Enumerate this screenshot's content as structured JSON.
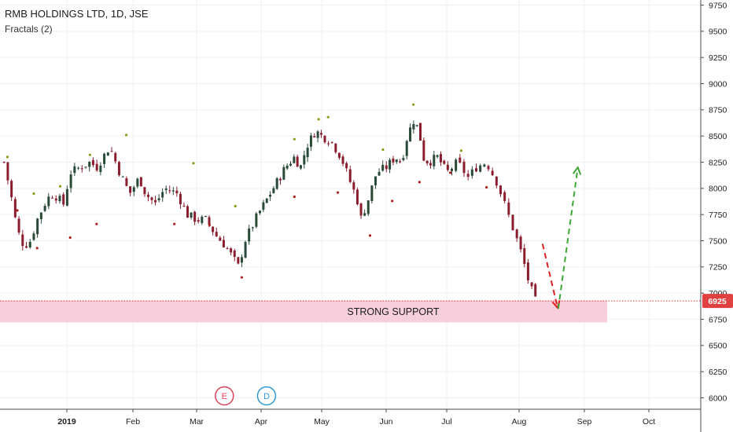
{
  "legend": {
    "title": "RMB HOLDINGS LTD, 1D, JSE",
    "indicator": "Fractals (2)"
  },
  "price_label": "6925",
  "support_label": "STRONG SUPPORT",
  "events": [
    {
      "label": "E",
      "color": "#e0405a",
      "x_month": 2.43
    },
    {
      "label": "D",
      "color": "#2d9ad6",
      "x_month": 3.09
    }
  ],
  "colors": {
    "candle_up": "#2a4a38",
    "candle_down": "#8a1e2e",
    "support_zone": "#f7cfdc",
    "price_line": "#e03030",
    "price_tag": "#e04040",
    "down_arrow": "#e02020",
    "up_arrow": "#3aa833",
    "fractal_up": "#8a9a1a",
    "fractal_down": "#b01e1e"
  },
  "chart_data": {
    "type": "candlestick",
    "title": "RMB HOLDINGS LTD, 1D, JSE",
    "interval": "1D",
    "ylim": [
      5880,
      9800
    ],
    "y_ticks": [
      "9750",
      "9500",
      "9250",
      "9000",
      "8750",
      "8500",
      "8250",
      "8000",
      "7750",
      "7500",
      "7250",
      "7000",
      "6750",
      "6500",
      "6250",
      "6000"
    ],
    "x_ticks": [
      "2019",
      "Feb",
      "Mar",
      "Apr",
      "May",
      "Jun",
      "Jul",
      "Aug",
      "Sep",
      "Oct"
    ],
    "last_price": 6925,
    "support_zone": {
      "low": 6720,
      "high": 6930,
      "label": "STRONG SUPPORT"
    },
    "close_path": [
      [
        -0.95,
        8250
      ],
      [
        -0.85,
        7950
      ],
      [
        -0.75,
        7600
      ],
      [
        -0.65,
        7450
      ],
      [
        -0.55,
        7500
      ],
      [
        -0.45,
        7700
      ],
      [
        -0.3,
        7900
      ],
      [
        -0.2,
        7950
      ],
      [
        -0.05,
        7850
      ],
      [
        0.05,
        8150
      ],
      [
        0.2,
        8200
      ],
      [
        0.35,
        8250
      ],
      [
        0.45,
        8200
      ],
      [
        0.55,
        8300
      ],
      [
        0.65,
        8400
      ],
      [
        0.8,
        8150
      ],
      [
        0.95,
        7950
      ],
      [
        1.1,
        8100
      ],
      [
        1.2,
        7950
      ],
      [
        1.35,
        7850
      ],
      [
        1.5,
        8000
      ],
      [
        1.7,
        7950
      ],
      [
        1.85,
        7750
      ],
      [
        2.0,
        7700
      ],
      [
        2.15,
        7700
      ],
      [
        2.3,
        7550
      ],
      [
        2.45,
        7450
      ],
      [
        2.55,
        7350
      ],
      [
        2.65,
        7250
      ],
      [
        2.75,
        7500
      ],
      [
        2.95,
        7750
      ],
      [
        3.2,
        8000
      ],
      [
        3.4,
        8200
      ],
      [
        3.55,
        8300
      ],
      [
        3.65,
        8200
      ],
      [
        3.75,
        8400
      ],
      [
        3.9,
        8550
      ],
      [
        4.0,
        8500
      ],
      [
        4.15,
        8450
      ],
      [
        4.3,
        8300
      ],
      [
        4.45,
        8050
      ],
      [
        4.55,
        7900
      ],
      [
        4.6,
        7700
      ],
      [
        4.7,
        7850
      ],
      [
        4.85,
        8150
      ],
      [
        5.0,
        8200
      ],
      [
        5.15,
        8300
      ],
      [
        5.25,
        8250
      ],
      [
        5.35,
        8500
      ],
      [
        5.45,
        8650
      ],
      [
        5.55,
        8550
      ],
      [
        5.6,
        8300
      ],
      [
        5.7,
        8250
      ],
      [
        5.85,
        8300
      ],
      [
        6.0,
        8150
      ],
      [
        6.15,
        8250
      ],
      [
        6.3,
        8100
      ],
      [
        6.4,
        8200
      ],
      [
        6.55,
        8250
      ],
      [
        6.7,
        8050
      ],
      [
        6.85,
        7750
      ],
      [
        6.95,
        7550
      ],
      [
        7.05,
        7350
      ],
      [
        7.15,
        7100
      ],
      [
        7.25,
        6925
      ]
    ],
    "fractals_up": [
      [
        -0.9,
        8300
      ],
      [
        -0.5,
        7950
      ],
      [
        -0.1,
        8020
      ],
      [
        0.35,
        8320
      ],
      [
        0.9,
        8510
      ],
      [
        1.95,
        8240
      ],
      [
        2.6,
        7830
      ],
      [
        3.55,
        8470
      ],
      [
        3.95,
        8660
      ],
      [
        4.1,
        8680
      ],
      [
        4.95,
        8370
      ],
      [
        5.45,
        8800
      ],
      [
        6.2,
        8360
      ]
    ],
    "fractals_down": [
      [
        -0.75,
        7790
      ],
      [
        -0.45,
        7430
      ],
      [
        0.05,
        7530
      ],
      [
        0.45,
        7660
      ],
      [
        1.65,
        7660
      ],
      [
        2.2,
        7650
      ],
      [
        2.7,
        7150
      ],
      [
        3.55,
        7920
      ],
      [
        4.25,
        7960
      ],
      [
        4.75,
        7550
      ],
      [
        5.1,
        7880
      ],
      [
        5.55,
        8060
      ],
      [
        6.05,
        8150
      ],
      [
        6.55,
        8010
      ]
    ],
    "projection": {
      "down": {
        "from": [
          7.36,
          7470
        ],
        "to": [
          7.59,
          6860
        ]
      },
      "up": {
        "from": [
          7.6,
          6850
        ],
        "to": [
          7.9,
          8200
        ]
      }
    }
  }
}
